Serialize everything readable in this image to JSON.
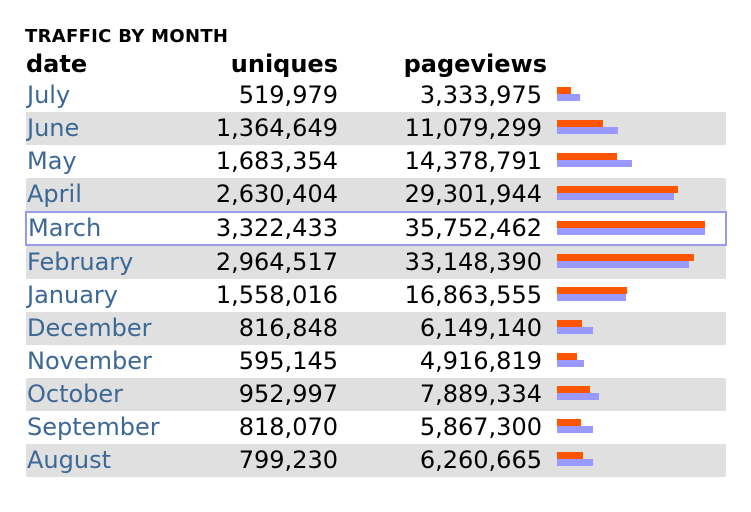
{
  "caption": "TRAFFIC BY MONTH",
  "headers": {
    "date": "date",
    "uniques": "uniques",
    "pageviews": "pageviews"
  },
  "colors": {
    "pageviews_bar": "#ff5500",
    "uniques_bar": "#9999ff",
    "row_alt": "#e0e0e0",
    "date_link": "#3c6896",
    "highlight_border": "#9999ee"
  },
  "highlighted_month": "March",
  "chart_data": {
    "type": "table",
    "title": "TRAFFIC BY MONTH",
    "columns": [
      "date",
      "uniques",
      "pageviews"
    ],
    "rows": [
      {
        "date": "July",
        "uniques": "519,979",
        "pageviews": "3,333,975",
        "u": 519979,
        "p": 3333975
      },
      {
        "date": "June",
        "uniques": "1,364,649",
        "pageviews": "11,079,299",
        "u": 1364649,
        "p": 11079299
      },
      {
        "date": "May",
        "uniques": "1,683,354",
        "pageviews": "14,378,791",
        "u": 1683354,
        "p": 14378791
      },
      {
        "date": "April",
        "uniques": "2,630,404",
        "pageviews": "29,301,944",
        "u": 2630404,
        "p": 29301944
      },
      {
        "date": "March",
        "uniques": "3,322,433",
        "pageviews": "35,752,462",
        "u": 3322433,
        "p": 35752462
      },
      {
        "date": "February",
        "uniques": "2,964,517",
        "pageviews": "33,148,390",
        "u": 2964517,
        "p": 33148390
      },
      {
        "date": "January",
        "uniques": "1,558,016",
        "pageviews": "16,863,555",
        "u": 1558016,
        "p": 16863555
      },
      {
        "date": "December",
        "uniques": "816,848",
        "pageviews": "6,149,140",
        "u": 816848,
        "p": 6149140
      },
      {
        "date": "November",
        "uniques": "595,145",
        "pageviews": "4,916,819",
        "u": 595145,
        "p": 4916819
      },
      {
        "date": "October",
        "uniques": "952,997",
        "pageviews": "7,889,334",
        "u": 952997,
        "p": 7889334
      },
      {
        "date": "September",
        "uniques": "818,070",
        "pageviews": "5,867,300",
        "u": 818070,
        "p": 5867300
      },
      {
        "date": "August",
        "uniques": "799,230",
        "pageviews": "6,260,665",
        "u": 799230,
        "p": 6260665
      }
    ]
  }
}
